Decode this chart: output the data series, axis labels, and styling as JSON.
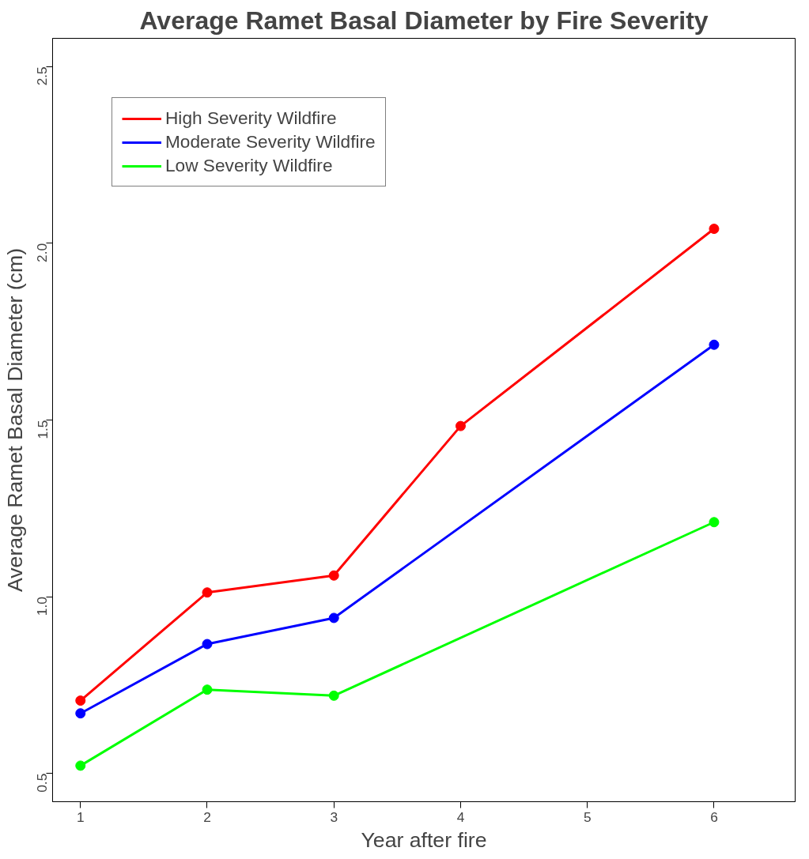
{
  "chart_data": {
    "type": "line",
    "title": "Average Ramet Basal Diameter by Fire Severity",
    "xlabel": "Year after fire",
    "ylabel": "Average Ramet Basal Diameter (cm)",
    "xlim": [
      0.78,
      6.64
    ],
    "ylim": [
      0.42,
      2.58
    ],
    "xticks": [
      1,
      2,
      3,
      4,
      5,
      6
    ],
    "yticks": [
      0.5,
      {
        "value": 1,
        "label": "1.0"
      },
      1.5,
      {
        "value": 2,
        "label": "2.0"
      },
      2.5
    ],
    "series": [
      {
        "name": "High Severity Wildfire",
        "color": "#ff0000",
        "x": [
          1,
          2,
          3,
          4,
          6
        ],
        "values": [
          0.706,
          1.012,
          1.06,
          1.483,
          2.041
        ]
      },
      {
        "name": "Moderate Severity Wildfire",
        "color": "#0000ff",
        "x": [
          1,
          2,
          3,
          6
        ],
        "values": [
          0.67,
          0.866,
          0.94,
          1.713
        ]
      },
      {
        "name": "Low Severity Wildfire",
        "color": "#00ff00",
        "x": [
          1,
          2,
          3,
          6
        ],
        "values": [
          0.522,
          0.737,
          0.72,
          1.211
        ]
      }
    ],
    "grid": false,
    "legend": "top left",
    "marker": "circle",
    "line_style": "solid"
  }
}
